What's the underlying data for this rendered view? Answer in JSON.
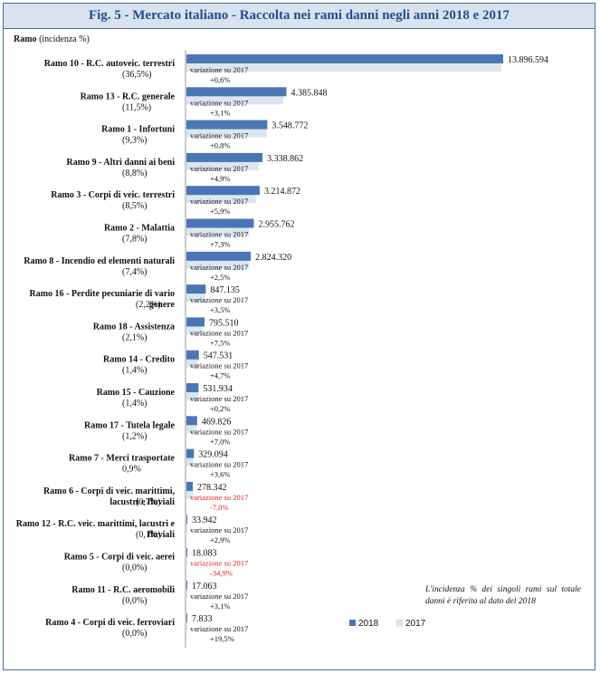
{
  "header": {
    "title": "Fig. 5 - Mercato italiano - Raccolta nei rami danni negli anni 2018 e 2017",
    "axis_label_bold": "Ramo",
    "axis_label_rest": " (incidenza %)"
  },
  "note": "L'incidenza % dei singoli rami sul totale danni è riferita al dato del 2018",
  "colors": {
    "s2018": "#4a77b4",
    "s2017": "#dce6f1",
    "neg": "#e0241b",
    "frame": "#4a6d9c",
    "title_bg": "#d9e2ef",
    "title_text": "#1f4e8c"
  },
  "chart_data": {
    "type": "bar",
    "orientation": "horizontal",
    "series": [
      {
        "name": "2018",
        "values": [
          13896594,
          4385848,
          3548772,
          3338862,
          3214872,
          2955762,
          2824320,
          847135,
          795510,
          547531,
          531934,
          469826,
          329094,
          278342,
          33942,
          18083,
          17063,
          7833
        ]
      },
      {
        "name": "2017",
        "values": [
          13813000,
          4254000,
          3520600,
          3183100,
          3035800,
          2755200,
          2755400,
          818500,
          740000,
          522900,
          530900,
          439100,
          317700,
          299300,
          32990,
          27800,
          16550,
          6550
        ]
      }
    ],
    "categories": [
      {
        "label": [
          "Ramo 10 - R.C. autoveic. terrestri"
        ],
        "share": "(36,5%)",
        "value_label": "13.896.594",
        "var_label": "variazione su 2017",
        "var": "+0,6%",
        "neg": false
      },
      {
        "label": [
          "Ramo 13 - R.C. generale"
        ],
        "share": "(11,5%)",
        "value_label": "4.385.848",
        "var_label": "variazione su 2017",
        "var": "+3,1%",
        "neg": false
      },
      {
        "label": [
          "Ramo 1 - Infortuni"
        ],
        "share": "(9,3%)",
        "value_label": "3.548.772",
        "var_label": "variazione su 2017",
        "var": "+0,8%",
        "neg": false
      },
      {
        "label": [
          "Ramo 9 - Altri danni ai beni"
        ],
        "share": "(8,8%)",
        "value_label": "3.338.862",
        "var_label": "variazione su 2017",
        "var": "+4,9%",
        "neg": false
      },
      {
        "label": [
          "Ramo 3 - Corpi di veic. terrestri"
        ],
        "share": "(8,5%)",
        "value_label": "3.214.872",
        "var_label": "variazione su 2017",
        "var": "+5,9%",
        "neg": false
      },
      {
        "label": [
          "Ramo 2 - Malattia"
        ],
        "share": "(7,8%)",
        "value_label": "2.955.762",
        "var_label": "variazione su 2017",
        "var": "+7,3%",
        "neg": false
      },
      {
        "label": [
          "Ramo 8 - Incendio ed elementi naturali"
        ],
        "share": "(7,4%)",
        "value_label": "2.824.320",
        "var_label": "variazione su 2017",
        "var": "+2,5%",
        "neg": false
      },
      {
        "label": [
          "Ramo 16 - Perdite pecuniarie di vario",
          "genere"
        ],
        "share": "(2,2%)",
        "value_label": "847.135",
        "var_label": "variazione su 2017",
        "var": "+3,5%",
        "neg": false
      },
      {
        "label": [
          "Ramo 18 - Assistenza"
        ],
        "share": "(2,1%)",
        "value_label": "795.510",
        "var_label": "variazione su 2017",
        "var": "+7,5%",
        "neg": false
      },
      {
        "label": [
          "Ramo 14 - Credito"
        ],
        "share": "(1,4%)",
        "value_label": "547.531",
        "var_label": "variazione su 2017",
        "var": "+4,7%",
        "neg": false
      },
      {
        "label": [
          "Ramo 15 - Cauzione"
        ],
        "share": "(1,4%)",
        "value_label": "531.934",
        "var_label": "variazione su 2017",
        "var": "+0,2%",
        "neg": false
      },
      {
        "label": [
          "Ramo 17 - Tutela legale"
        ],
        "share": "(1,2%)",
        "value_label": "469.826",
        "var_label": "variazione su 2017",
        "var": "+7,0%",
        "neg": false
      },
      {
        "label": [
          "Ramo 7 - Merci trasportate"
        ],
        "share": "0,9%",
        "value_label": "329.094",
        "var_label": "variazione su 2017",
        "var": "+3,6%",
        "neg": false
      },
      {
        "label": [
          "Ramo 6 - Corpi di veic. marittimi,",
          "lacustri e fluviali"
        ],
        "share": "(0,7%)",
        "value_label": "278.342",
        "var_label": "variazione su 2017",
        "var": "-7,0%",
        "neg": true
      },
      {
        "label": [
          "Ramo 12 - R.C. veic. marittimi, lacustri e",
          "fluviali"
        ],
        "share": "(0,1%)",
        "value_label": "33.942",
        "var_label": "variazione su 2017",
        "var": "+2,9%",
        "neg": false
      },
      {
        "label": [
          "Ramo 5 - Corpi di veic. aerei"
        ],
        "share": "(0,0%)",
        "value_label": "18.083",
        "var_label": "variazione su 2017",
        "var": "-34,9%",
        "neg": true
      },
      {
        "label": [
          "Ramo 11 - R.C. aeromobili"
        ],
        "share": "(0,0%)",
        "value_label": "17.063",
        "var_label": "variazione su 2017",
        "var": "+3,1%",
        "neg": false
      },
      {
        "label": [
          "Ramo 4 - Corpi di veic. ferroviari"
        ],
        "share": "(0,0%)",
        "value_label": "7.833",
        "var_label": "variazione su 2017",
        "var": "+19,5%",
        "neg": false
      }
    ],
    "legend": {
      "placement": "bottom-right",
      "items": [
        "2018",
        "2017"
      ]
    }
  }
}
